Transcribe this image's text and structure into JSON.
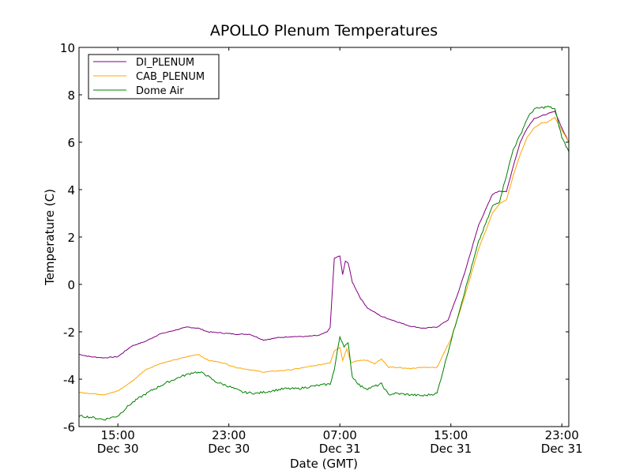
{
  "chart_data": {
    "type": "line",
    "title": "APOLLO Plenum Temperatures",
    "xlabel": "Date (GMT)",
    "ylabel": "Temperature (C)",
    "x_unit": "hours since Dec 30 00:00 GMT",
    "xlim": [
      12.2,
      47.5
    ],
    "ylim": [
      -6,
      10
    ],
    "grid": false,
    "legend_position": "top-left",
    "yticks": [
      {
        "value": -6,
        "label": "-6"
      },
      {
        "value": -4,
        "label": "-4"
      },
      {
        "value": -2,
        "label": "-2"
      },
      {
        "value": 0,
        "label": "0"
      },
      {
        "value": 2,
        "label": "2"
      },
      {
        "value": 4,
        "label": "4"
      },
      {
        "value": 6,
        "label": "6"
      },
      {
        "value": 8,
        "label": "8"
      },
      {
        "value": 10,
        "label": "10"
      }
    ],
    "xticks": [
      {
        "value": 15,
        "time": "15:00",
        "date": "Dec 30"
      },
      {
        "value": 23,
        "time": "23:00",
        "date": "Dec 30"
      },
      {
        "value": 31,
        "time": "07:00",
        "date": "Dec 31"
      },
      {
        "value": 39,
        "time": "15:00",
        "date": "Dec 31"
      },
      {
        "value": 47,
        "time": "23:00",
        "date": "Dec 31"
      }
    ],
    "series": [
      {
        "name": "DI_PLENUM",
        "color": "#800080",
        "x": [
          12.2,
          13.0,
          14.0,
          15.0,
          16.0,
          17.0,
          18.0,
          19.0,
          20.0,
          20.8,
          21.5,
          22.5,
          23.5,
          24.5,
          25.5,
          26.5,
          27.5,
          28.5,
          29.5,
          30.1,
          30.3,
          30.6,
          31.0,
          31.2,
          31.4,
          31.6,
          31.9,
          32.5,
          33.0,
          34.0,
          35.0,
          36.0,
          37.0,
          38.0,
          38.8,
          39.5,
          40.0,
          41.0,
          42.0,
          42.5,
          43.0,
          43.5,
          44.0,
          44.5,
          45.0,
          45.5,
          46.0,
          46.5,
          47.0,
          47.5
        ],
        "y": [
          -2.95,
          -3.05,
          -3.1,
          -3.05,
          -2.6,
          -2.4,
          -2.1,
          -1.95,
          -1.8,
          -1.85,
          -2.0,
          -2.05,
          -2.1,
          -2.1,
          -2.35,
          -2.25,
          -2.2,
          -2.2,
          -2.15,
          -2.0,
          -1.8,
          1.1,
          1.2,
          0.4,
          1.0,
          0.9,
          0.1,
          -0.6,
          -1.0,
          -1.35,
          -1.55,
          -1.75,
          -1.85,
          -1.8,
          -1.5,
          -0.4,
          0.5,
          2.5,
          3.8,
          3.95,
          3.9,
          5.0,
          6.0,
          6.6,
          7.0,
          7.1,
          7.2,
          7.3,
          6.6,
          6.0
        ]
      },
      {
        "name": "CAB_PLENUM",
        "color": "#ffa500",
        "x": [
          12.2,
          13.0,
          14.0,
          15.0,
          16.0,
          17.0,
          18.0,
          19.0,
          20.0,
          20.8,
          21.5,
          22.5,
          23.5,
          24.5,
          25.5,
          26.5,
          27.5,
          28.5,
          29.5,
          30.3,
          30.6,
          31.0,
          31.2,
          31.5,
          31.8,
          32.5,
          33.0,
          33.5,
          34.0,
          34.5,
          35.0,
          36.0,
          37.0,
          38.0,
          39.0,
          40.0,
          41.0,
          42.0,
          42.5,
          43.0,
          43.5,
          44.0,
          44.5,
          45.0,
          45.5,
          46.0,
          46.5,
          47.0,
          47.5
        ],
        "y": [
          -4.55,
          -4.6,
          -4.65,
          -4.5,
          -4.1,
          -3.6,
          -3.35,
          -3.2,
          -3.05,
          -2.95,
          -3.2,
          -3.3,
          -3.5,
          -3.6,
          -3.7,
          -3.65,
          -3.6,
          -3.5,
          -3.4,
          -3.3,
          -2.8,
          -2.65,
          -3.2,
          -2.7,
          -3.3,
          -3.2,
          -3.2,
          -3.35,
          -3.15,
          -3.5,
          -3.5,
          -3.55,
          -3.5,
          -3.5,
          -2.3,
          -0.5,
          1.5,
          3.0,
          3.4,
          3.55,
          4.6,
          5.5,
          6.2,
          6.6,
          6.8,
          6.85,
          7.05,
          6.5,
          6.0
        ]
      },
      {
        "name": "Dome Air",
        "color": "#008000",
        "x": [
          12.2,
          13.0,
          14.0,
          15.0,
          15.8,
          16.5,
          17.5,
          18.5,
          19.5,
          20.5,
          21.2,
          22.0,
          23.0,
          24.0,
          25.0,
          26.0,
          27.0,
          28.0,
          29.0,
          30.3,
          30.6,
          31.0,
          31.3,
          31.6,
          31.9,
          32.5,
          33.0,
          33.5,
          34.0,
          34.5,
          35.0,
          36.0,
          37.0,
          38.0,
          39.0,
          40.0,
          41.0,
          42.0,
          42.5,
          43.0,
          43.5,
          44.0,
          44.5,
          45.0,
          45.5,
          46.0,
          46.5,
          47.0,
          47.5
        ],
        "y": [
          -5.55,
          -5.6,
          -5.7,
          -5.55,
          -5.1,
          -4.8,
          -4.45,
          -4.15,
          -3.9,
          -3.7,
          -3.75,
          -4.1,
          -4.3,
          -4.55,
          -4.6,
          -4.5,
          -4.4,
          -4.4,
          -4.3,
          -4.2,
          -3.6,
          -2.2,
          -2.6,
          -2.5,
          -3.9,
          -4.3,
          -4.4,
          -4.3,
          -4.2,
          -4.65,
          -4.6,
          -4.65,
          -4.7,
          -4.6,
          -2.4,
          -0.3,
          1.8,
          3.3,
          3.5,
          4.6,
          5.7,
          6.3,
          7.0,
          7.4,
          7.45,
          7.5,
          7.4,
          6.2,
          5.6
        ]
      }
    ]
  }
}
